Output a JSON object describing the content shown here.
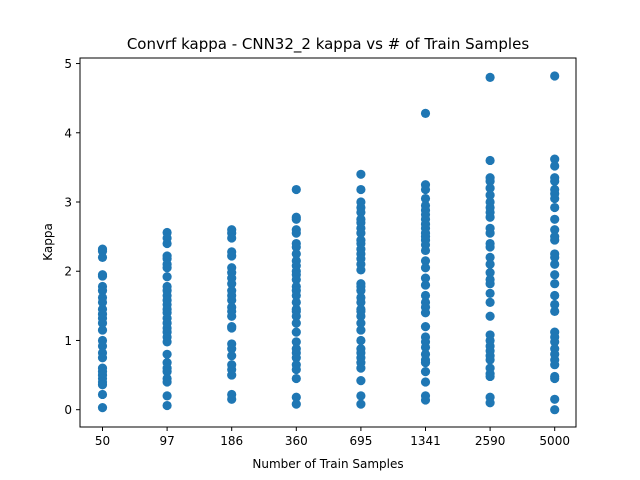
{
  "chart_data": {
    "type": "scatter",
    "title": "Convrf kappa - CNN32_2 kappa vs # of Train Samples",
    "xlabel": "Number of Train Samples",
    "ylabel": "Kappa",
    "categories": [
      "50",
      "97",
      "186",
      "360",
      "695",
      "1341",
      "2590",
      "5000"
    ],
    "yticks": [
      "0",
      "1",
      "2",
      "3",
      "4",
      "5"
    ],
    "ylim": [
      -0.25,
      5.08
    ],
    "grid": false,
    "marker_color": "#1f77b4",
    "series": [
      {
        "category": "50",
        "values": [
          2.32,
          2.29,
          2.2,
          1.95,
          1.93,
          1.78,
          1.72,
          1.62,
          1.55,
          1.45,
          1.38,
          1.32,
          1.25,
          1.15,
          1.0,
          0.92,
          0.82,
          0.75,
          0.6,
          0.55,
          0.5,
          0.45,
          0.4,
          0.36,
          0.22,
          0.03
        ]
      },
      {
        "category": "97",
        "values": [
          2.56,
          2.48,
          2.4,
          2.22,
          2.18,
          2.1,
          2.05,
          1.92,
          1.78,
          1.72,
          1.65,
          1.58,
          1.52,
          1.45,
          1.4,
          1.32,
          1.25,
          1.18,
          1.12,
          1.05,
          0.98,
          0.8,
          0.68,
          0.6,
          0.55,
          0.45,
          0.4,
          0.2,
          0.06
        ]
      },
      {
        "category": "186",
        "values": [
          2.6,
          2.55,
          2.48,
          2.28,
          2.22,
          2.05,
          1.98,
          1.9,
          1.82,
          1.72,
          1.65,
          1.58,
          1.48,
          1.42,
          1.35,
          1.2,
          1.18,
          0.95,
          0.88,
          0.78,
          0.65,
          0.58,
          0.5,
          0.22,
          0.15
        ]
      },
      {
        "category": "360",
        "values": [
          3.18,
          2.78,
          2.75,
          2.6,
          2.55,
          2.4,
          2.35,
          2.25,
          2.15,
          2.08,
          2.0,
          1.95,
          1.88,
          1.78,
          1.72,
          1.65,
          1.55,
          1.45,
          1.42,
          1.35,
          1.25,
          1.12,
          0.98,
          0.88,
          0.82,
          0.75,
          0.65,
          0.58,
          0.45,
          0.18,
          0.08
        ]
      },
      {
        "category": "695",
        "values": [
          3.4,
          3.18,
          3.0,
          2.92,
          2.85,
          2.75,
          2.7,
          2.62,
          2.55,
          2.45,
          2.4,
          2.32,
          2.25,
          2.18,
          2.1,
          2.02,
          1.82,
          1.78,
          1.72,
          1.62,
          1.55,
          1.45,
          1.42,
          1.35,
          1.25,
          1.15,
          1.0,
          0.88,
          0.82,
          0.75,
          0.68,
          0.6,
          0.42,
          0.2,
          0.08
        ]
      },
      {
        "category": "1341",
        "values": [
          4.28,
          3.25,
          3.18,
          3.05,
          2.95,
          2.88,
          2.82,
          2.75,
          2.68,
          2.62,
          2.55,
          2.5,
          2.45,
          2.38,
          2.3,
          2.15,
          2.05,
          1.9,
          1.8,
          1.65,
          1.55,
          1.48,
          1.4,
          1.2,
          1.05,
          0.98,
          0.9,
          0.8,
          0.72,
          0.68,
          0.55,
          0.4,
          0.2,
          0.14
        ]
      },
      {
        "category": "2590",
        "values": [
          4.8,
          3.6,
          3.35,
          3.3,
          3.2,
          3.1,
          3.0,
          2.92,
          2.85,
          2.78,
          2.62,
          2.55,
          2.4,
          2.35,
          2.2,
          2.1,
          1.98,
          1.88,
          1.82,
          1.68,
          1.55,
          1.35,
          1.08,
          1.0,
          0.92,
          0.85,
          0.78,
          0.72,
          0.6,
          0.52,
          0.48,
          0.18,
          0.1
        ]
      },
      {
        "category": "5000",
        "values": [
          4.82,
          3.62,
          3.52,
          3.35,
          3.3,
          3.18,
          3.12,
          3.05,
          2.92,
          2.75,
          2.6,
          2.5,
          2.45,
          2.25,
          2.2,
          2.1,
          1.95,
          1.82,
          1.65,
          1.52,
          1.42,
          1.12,
          1.05,
          0.98,
          0.88,
          0.8,
          0.72,
          0.65,
          0.48,
          0.45,
          0.15,
          0.0
        ]
      }
    ]
  }
}
